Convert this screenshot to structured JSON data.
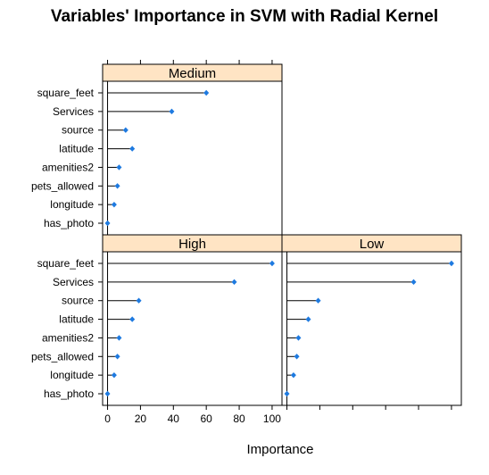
{
  "chart_data": {
    "type": "dotplot",
    "title": "Variables' Importance in SVM with Radial Kernel",
    "xlabel": "Importance",
    "ylabel": "",
    "xlim": [
      -3,
      106
    ],
    "xticks": [
      0,
      20,
      40,
      60,
      80,
      100
    ],
    "categories": [
      "square_feet",
      "Services",
      "source",
      "latitude",
      "amenities2",
      "pets_allowed",
      "longitude",
      "has_photo"
    ],
    "panels": [
      {
        "name": "Medium",
        "values": [
          60,
          39,
          11,
          15,
          7,
          6,
          4,
          0
        ]
      },
      {
        "name": "High",
        "values": [
          100,
          77,
          19,
          15,
          7,
          6,
          4,
          0
        ]
      },
      {
        "name": "Low",
        "values": [
          100,
          77,
          19,
          13,
          7,
          6,
          4,
          0
        ]
      }
    ],
    "colors": {
      "point": "#1e7ae0",
      "strip": "#ffe4c4",
      "line": "#000000"
    }
  }
}
